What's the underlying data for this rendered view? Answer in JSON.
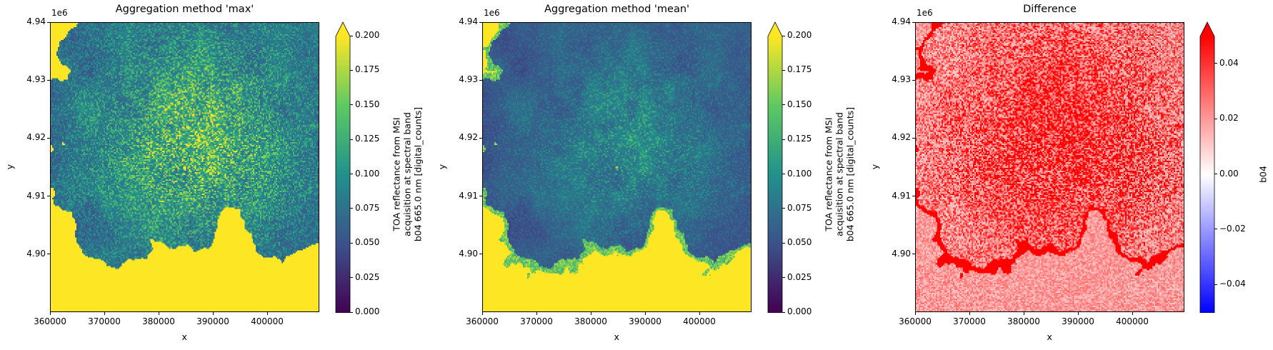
{
  "chart_data": [
    {
      "type": "heatmap",
      "title": "Aggregation method 'max'",
      "xlabel": "x",
      "ylabel": "y",
      "xlim": [
        360000,
        409600
      ],
      "ylim": [
        4.89,
        4.94
      ],
      "y_scale_label": "1e6",
      "x_ticks": [
        360000,
        370000,
        380000,
        390000,
        400000
      ],
      "x_tick_labels": [
        "360000",
        "370000",
        "380000",
        "390000",
        "400000"
      ],
      "y_ticks": [
        4.9,
        4.91,
        4.92,
        4.93,
        4.94
      ],
      "y_tick_labels": [
        "4.90",
        "4.91",
        "4.92",
        "4.93",
        "4.94"
      ],
      "colorbar": {
        "colormap": "viridis",
        "range": [
          0.0,
          0.2
        ],
        "extend": "max",
        "ticks": [
          0.0,
          0.025,
          0.05,
          0.075,
          0.1,
          0.125,
          0.15,
          0.175,
          0.2
        ],
        "tick_labels": [
          "0.000",
          "0.025",
          "0.050",
          "0.075",
          "0.100",
          "0.125",
          "0.150",
          "0.175",
          "0.200"
        ],
        "label_lines": [
          "TOA reflectance from MSI",
          "acquisition at spectral band",
          "b04 665.0 nm [digital_counts]"
        ]
      }
    },
    {
      "type": "heatmap",
      "title": "Aggregation method 'mean'",
      "xlabel": "x",
      "ylabel": "y",
      "xlim": [
        360000,
        409600
      ],
      "ylim": [
        4.89,
        4.94
      ],
      "y_scale_label": "1e6",
      "x_ticks": [
        360000,
        370000,
        380000,
        390000,
        400000
      ],
      "x_tick_labels": [
        "360000",
        "370000",
        "380000",
        "390000",
        "400000"
      ],
      "y_ticks": [
        4.9,
        4.91,
        4.92,
        4.93,
        4.94
      ],
      "y_tick_labels": [
        "4.90",
        "4.91",
        "4.92",
        "4.93",
        "4.94"
      ],
      "colorbar": {
        "colormap": "viridis",
        "range": [
          0.0,
          0.2
        ],
        "extend": "max",
        "ticks": [
          0.0,
          0.025,
          0.05,
          0.075,
          0.1,
          0.125,
          0.15,
          0.175,
          0.2
        ],
        "tick_labels": [
          "0.000",
          "0.025",
          "0.050",
          "0.075",
          "0.100",
          "0.125",
          "0.150",
          "0.175",
          "0.200"
        ],
        "label_lines": [
          "TOA reflectance from MSI",
          "acquisition at spectral band",
          "b04 665.0 nm [digital_counts]"
        ]
      }
    },
    {
      "type": "heatmap",
      "title": "Difference",
      "xlabel": "x",
      "ylabel": "y",
      "xlim": [
        360000,
        409600
      ],
      "ylim": [
        4.89,
        4.94
      ],
      "y_scale_label": "1e6",
      "x_ticks": [
        360000,
        370000,
        380000,
        390000,
        400000
      ],
      "x_tick_labels": [
        "360000",
        "370000",
        "380000",
        "390000",
        "400000"
      ],
      "y_ticks": [
        4.9,
        4.91,
        4.92,
        4.93,
        4.94
      ],
      "y_tick_labels": [
        "4.90",
        "4.91",
        "4.92",
        "4.93",
        "4.94"
      ],
      "colorbar": {
        "colormap": "bwr",
        "range": [
          -0.05,
          0.05
        ],
        "extend": "max",
        "ticks": [
          -0.04,
          -0.02,
          0.0,
          0.02,
          0.04
        ],
        "tick_labels": [
          "−0.04",
          "−0.02",
          "0.00",
          "0.02",
          "0.04"
        ],
        "label_lines": [
          "b04"
        ]
      }
    }
  ]
}
